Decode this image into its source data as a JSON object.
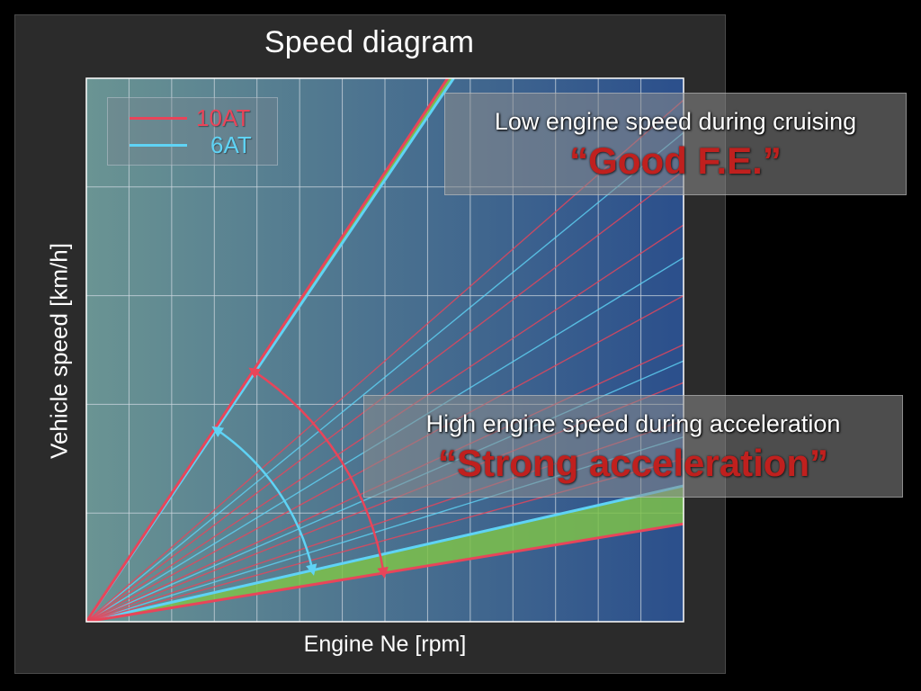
{
  "chart_data": {
    "type": "line",
    "title": "Speed diagram",
    "xlabel": "Engine Ne [rpm]",
    "ylabel": "Vehicle speed [km/h]",
    "grid": true,
    "legend_position": "top-left",
    "series": [
      {
        "name": "10AT",
        "color": "#e8455a",
        "gear_line_endpoints": [
          {
            "x": 0.605,
            "y": 1.0
          },
          {
            "x": 1.0,
            "y": 0.96
          },
          {
            "x": 1.0,
            "y": 0.83
          },
          {
            "x": 1.0,
            "y": 0.73
          },
          {
            "x": 1.0,
            "y": 0.6
          },
          {
            "x": 1.0,
            "y": 0.51
          },
          {
            "x": 1.0,
            "y": 0.44
          },
          {
            "x": 1.0,
            "y": 0.37
          },
          {
            "x": 1.0,
            "y": 0.3
          },
          {
            "x": 1.0,
            "y": 0.18
          }
        ]
      },
      {
        "name": "6AT",
        "color": "#5fd3f5",
        "gear_line_endpoints": [
          {
            "x": 0.615,
            "y": 1.0
          },
          {
            "x": 1.0,
            "y": 0.9
          },
          {
            "x": 1.0,
            "y": 0.67
          },
          {
            "x": 1.0,
            "y": 0.48
          },
          {
            "x": 1.0,
            "y": 0.34
          },
          {
            "x": 1.0,
            "y": 0.25
          }
        ]
      }
    ],
    "highlight_bands": [
      {
        "between": [
          0,
          0
        ],
        "color": "#7ec24a"
      },
      {
        "between": [
          9,
          5
        ],
        "color": "#7ec24a"
      }
    ],
    "arcs": [
      {
        "series": "10AT",
        "from_line": 0,
        "to_line": 9,
        "color": "#e8455a"
      },
      {
        "series": "6AT",
        "from_line": 0,
        "to_line": 5,
        "color": "#5fd3f5"
      }
    ]
  },
  "legend": {
    "items": [
      {
        "label": "10AT",
        "color": "#e8455a"
      },
      {
        "label": "6AT",
        "color": "#5fd3f5"
      }
    ]
  },
  "callouts": {
    "fe": {
      "line1": "Low engine speed during cruising",
      "line2": "“Good F.E.”"
    },
    "acceleration": {
      "line1": "High engine speed during acceleration",
      "line2": "“Strong acceleration”"
    }
  },
  "colors": {
    "panel_bg": "#2b2b2b",
    "plot_bg_left": "#6a9493",
    "plot_bg_right": "#2b4f8c",
    "grid": "#cfd8e0",
    "emphasis_text": "#c0201e"
  }
}
